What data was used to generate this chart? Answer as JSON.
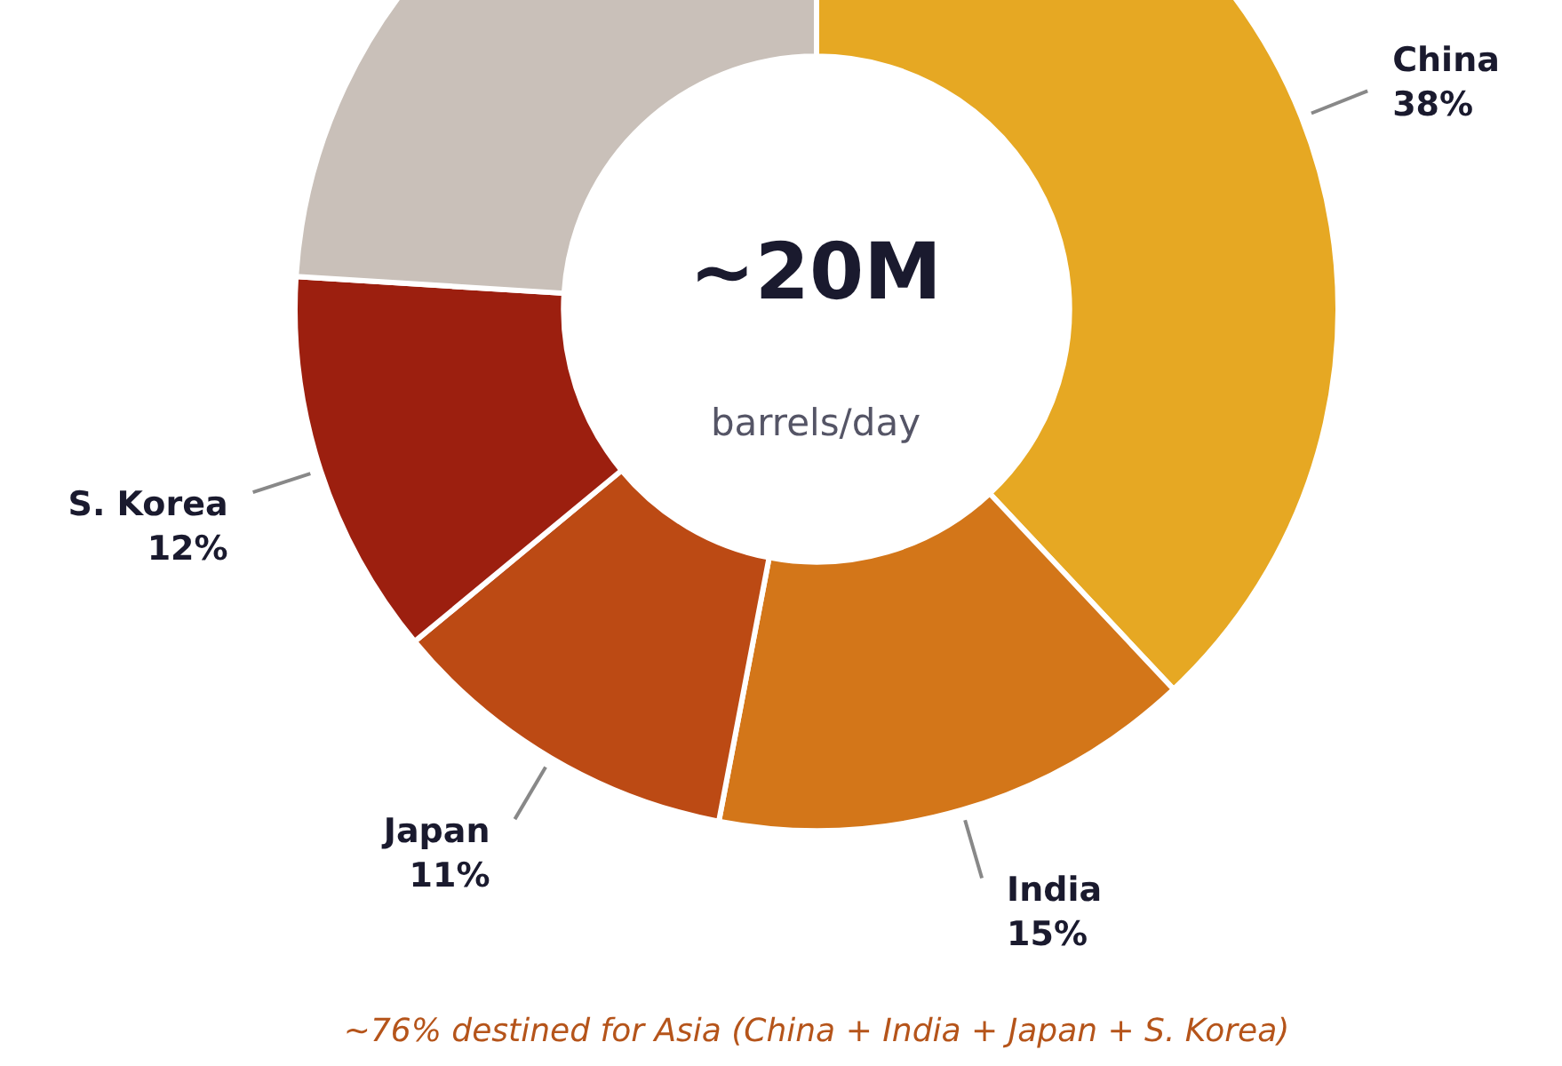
{
  "chart_data": {
    "type": "donut",
    "title": "~20M",
    "subtitle": "barrels/day",
    "categories": [
      "China",
      "India",
      "Japan",
      "S. Korea",
      null
    ],
    "values": [
      38,
      15,
      11,
      12,
      24
    ],
    "colors": [
      "#e6a823",
      "#d37619",
      "#bc4a14",
      "#9c1f0f",
      "#c9c0b9"
    ],
    "value_labels": [
      "38%",
      "15%",
      "11%",
      "12%",
      null
    ],
    "legend": false,
    "annotations": [
      "~76% destined for Asia  (China + India + Japan + S. Korea)"
    ]
  }
}
